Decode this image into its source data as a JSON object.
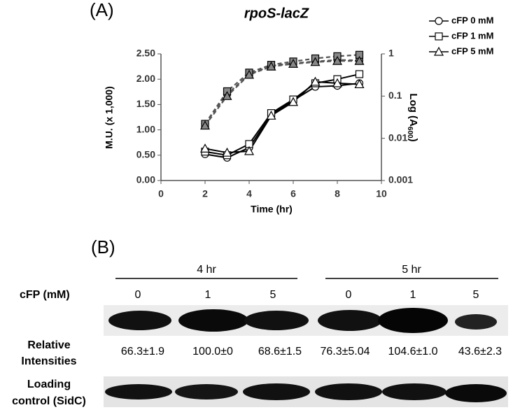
{
  "panel_a": {
    "label": "(A)"
  },
  "chart_data": {
    "type": "line",
    "title": "rpoS-lacZ",
    "xlabel": "Time (hr)",
    "ylabel": "M.U. (x 1,000)",
    "y2label": {
      "text": "Log (A",
      "sub": "600",
      "end": ")"
    },
    "x": [
      2,
      3,
      4,
      5,
      6,
      7,
      8,
      9
    ],
    "xlim": [
      0,
      10
    ],
    "xticks": [
      0,
      2,
      4,
      6,
      8,
      10
    ],
    "ylim": [
      0,
      2.5
    ],
    "yticks": [
      {
        "value": 0,
        "label": "0.00"
      },
      {
        "value": 0.5,
        "label": "0.50"
      },
      {
        "value": 1,
        "label": "1.00"
      },
      {
        "value": 1.5,
        "label": "1.50"
      },
      {
        "value": 2,
        "label": "2.00"
      },
      {
        "value": 2.5,
        "label": "2.50"
      }
    ],
    "y2lim": [
      0.001,
      1
    ],
    "y2ticks": [
      0.001,
      0.01,
      0.1,
      1
    ],
    "y2_log": true,
    "legend": "top-right",
    "series": [
      {
        "name": "cFP 0 mM",
        "marker": "circle",
        "color": "#000000",
        "values": [
          0.52,
          0.45,
          0.65,
          1.3,
          1.58,
          1.85,
          1.87,
          1.92
        ],
        "y2_values": [
          0.022,
          0.11,
          0.33,
          0.52,
          0.6,
          0.66,
          0.72,
          0.7
        ]
      },
      {
        "name": "cFP 1 mM",
        "marker": "square",
        "color": "#000000",
        "values": [
          0.57,
          0.5,
          0.72,
          1.33,
          1.6,
          1.92,
          2.0,
          2.1
        ],
        "y2_values": [
          0.022,
          0.13,
          0.36,
          0.55,
          0.66,
          0.78,
          0.88,
          0.95
        ]
      },
      {
        "name": "cFP 5 mM",
        "marker": "triangle",
        "color": "#000000",
        "values": [
          0.63,
          0.55,
          0.58,
          1.28,
          1.55,
          1.95,
          1.92,
          1.9
        ],
        "y2_values": [
          0.02,
          0.1,
          0.32,
          0.5,
          0.58,
          0.64,
          0.68,
          0.68
        ]
      }
    ]
  },
  "panel_b": {
    "label": "(B)",
    "groups": [
      "4 hr",
      "5 hr"
    ],
    "row_label": "cFP (mM)",
    "lanes": [
      "0",
      "1",
      "5",
      "0",
      "1",
      "5"
    ],
    "intensity_label": [
      "Relative",
      "Intensities"
    ],
    "intensities": [
      "66.3±1.9",
      "100.0±0",
      "68.6±1.5",
      "76.3±5.04",
      "104.6±1.0",
      "43.6±2.3"
    ],
    "loading_label": [
      "Loading",
      "control (SidC)"
    ]
  }
}
